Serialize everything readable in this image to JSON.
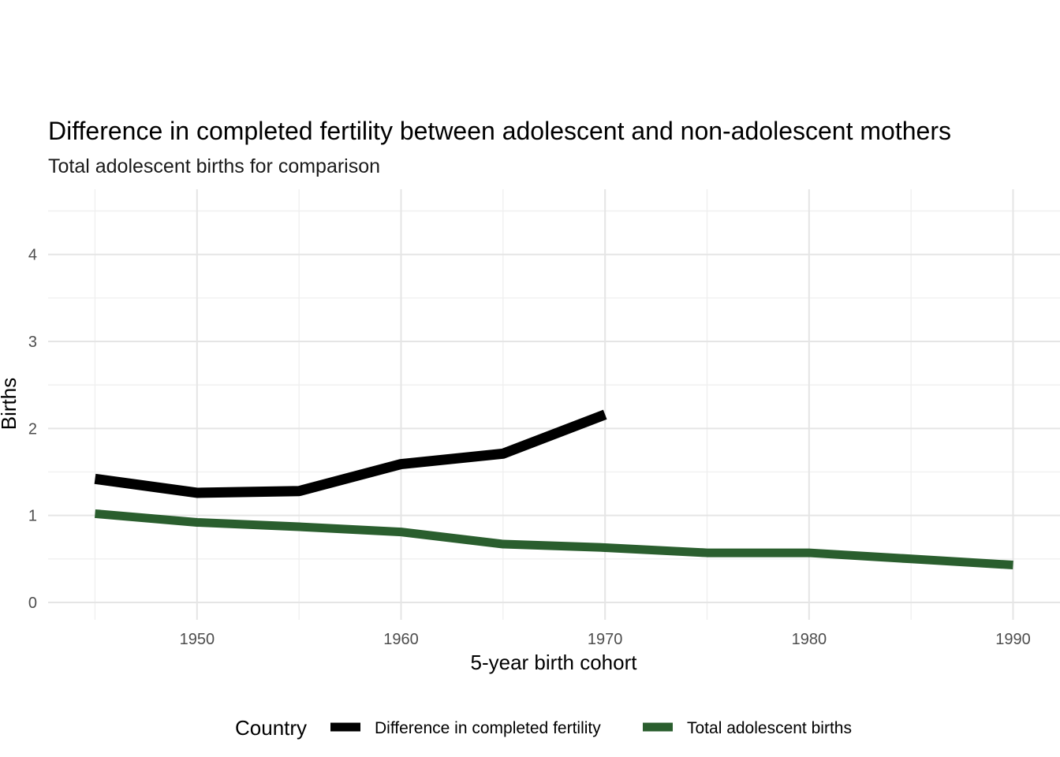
{
  "chart_data": {
    "type": "line",
    "title": "Difference in completed fertility between adolescent and non-adolescent mothers",
    "subtitle": "Total adolescent births for comparison",
    "xlabel": "5-year birth cohort",
    "ylabel": "Births",
    "xlim": [
      1942.7,
      1992.3
    ],
    "ylim": [
      -0.2,
      4.75
    ],
    "x_ticks": [
      1950,
      1960,
      1970,
      1980,
      1990
    ],
    "y_ticks": [
      0,
      1,
      2,
      3,
      4
    ],
    "grid": true,
    "legend": {
      "title": "Country",
      "position": "bottom"
    },
    "series": [
      {
        "name": "Difference in completed fertility",
        "color": "#000000",
        "x": [
          1945,
          1950,
          1955,
          1960,
          1965,
          1970
        ],
        "y": [
          1.42,
          1.26,
          1.28,
          1.59,
          1.71,
          2.16
        ]
      },
      {
        "name": "Total adolescent births",
        "color": "#2a5e2e",
        "x": [
          1945,
          1950,
          1955,
          1960,
          1965,
          1970,
          1975,
          1980,
          1985,
          1990
        ],
        "y": [
          1.02,
          0.92,
          0.87,
          0.81,
          0.67,
          0.63,
          0.57,
          0.57,
          0.5,
          0.43
        ]
      }
    ]
  }
}
